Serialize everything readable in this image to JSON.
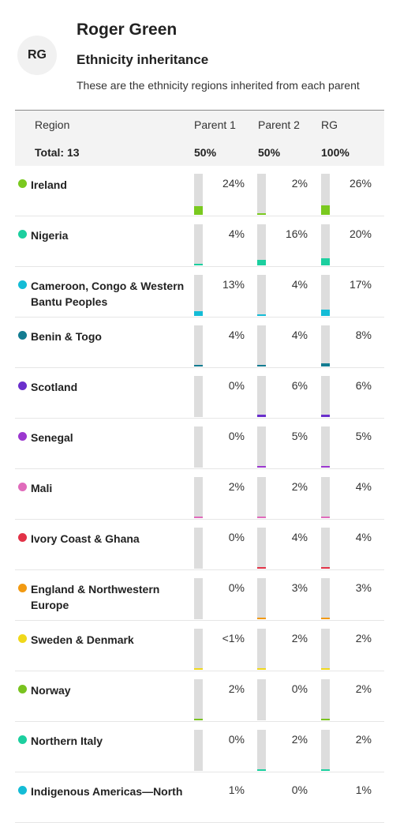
{
  "header": {
    "avatar_initials": "RG",
    "name": "Roger Green",
    "title": "Ethnicity inheritance",
    "description": "These are the ethnicity regions inherited from each parent"
  },
  "table": {
    "col_region": "Region",
    "col_parent1": "Parent 1",
    "col_parent2": "Parent 2",
    "col_self": "RG",
    "total_label": "Total: 13",
    "total_parent1": "50%",
    "total_parent2": "50%",
    "total_self": "100%",
    "rows": [
      {
        "region": "Ireland",
        "color": "#7ac91f",
        "p1": "24%",
        "p2": "2%",
        "self": "26%",
        "p1_level": 0.24,
        "p2_level": 0.02,
        "self_level": 0.26
      },
      {
        "region": "Nigeria",
        "color": "#1ccf9f",
        "p1": "4%",
        "p2": "16%",
        "self": "20%",
        "p1_level": 0.04,
        "p2_level": 0.16,
        "self_level": 0.2
      },
      {
        "region": "Cameroon, Congo & Western Bantu Peoples",
        "color": "#14bcd6",
        "p1": "13%",
        "p2": "4%",
        "self": "17%",
        "p1_level": 0.13,
        "p2_level": 0.04,
        "self_level": 0.17
      },
      {
        "region": "Benin & Togo",
        "color": "#137c91",
        "p1": "4%",
        "p2": "4%",
        "self": "8%",
        "p1_level": 0.04,
        "p2_level": 0.04,
        "self_level": 0.08
      },
      {
        "region": "Scotland",
        "color": "#6a2fcc",
        "p1": "0%",
        "p2": "6%",
        "self": "6%",
        "p1_level": 0.0,
        "p2_level": 0.06,
        "self_level": 0.06
      },
      {
        "region": "Senegal",
        "color": "#9b37cf",
        "p1": "0%",
        "p2": "5%",
        "self": "5%",
        "p1_level": 0.0,
        "p2_level": 0.05,
        "self_level": 0.05
      },
      {
        "region": "Mali",
        "color": "#e06bbb",
        "p1": "2%",
        "p2": "2%",
        "self": "4%",
        "p1_level": 0.02,
        "p2_level": 0.02,
        "self_level": 0.04
      },
      {
        "region": "Ivory Coast & Ghana",
        "color": "#e23247",
        "p1": "0%",
        "p2": "4%",
        "self": "4%",
        "p1_level": 0.0,
        "p2_level": 0.04,
        "self_level": 0.04
      },
      {
        "region": "England & Northwestern Europe",
        "color": "#f29a12",
        "p1": "0%",
        "p2": "3%",
        "self": "3%",
        "p1_level": 0.0,
        "p2_level": 0.03,
        "self_level": 0.03
      },
      {
        "region": "Sweden & Denmark",
        "color": "#f0d81a",
        "p1": "<1%",
        "p2": "2%",
        "self": "2%",
        "p1_level": 0.005,
        "p2_level": 0.02,
        "self_level": 0.02
      },
      {
        "region": "Norway",
        "color": "#79c31f",
        "p1": "2%",
        "p2": "0%",
        "self": "2%",
        "p1_level": 0.02,
        "p2_level": 0.0,
        "self_level": 0.02
      },
      {
        "region": "Northern Italy",
        "color": "#1ccf9f",
        "p1": "0%",
        "p2": "2%",
        "self": "2%",
        "p1_level": 0.0,
        "p2_level": 0.02,
        "self_level": 0.02
      },
      {
        "region": "Indigenous Americas—North",
        "color": "#14bcd6",
        "p1": "1%",
        "p2": "0%",
        "self": "1%",
        "p1_level": 0.01,
        "p2_level": 0.0,
        "self_level": 0.01
      }
    ]
  }
}
